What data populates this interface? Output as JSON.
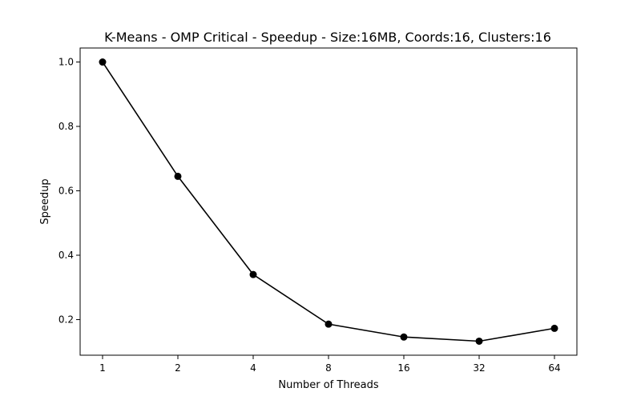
{
  "chart_data": {
    "type": "line",
    "title": "K-Means - OMP Critical - Speedup - Size:16MB, Coords:16, Clusters:16",
    "xlabel": "Number of Threads",
    "ylabel": "Speedup",
    "categories": [
      "1",
      "2",
      "4",
      "8",
      "16",
      "32",
      "64"
    ],
    "series": [
      {
        "color": "#000000",
        "marker": "circle",
        "values": [
          1.0,
          0.645,
          0.34,
          0.186,
          0.146,
          0.133,
          0.173
        ]
      }
    ],
    "yticks": [
      0.2,
      0.4,
      0.6,
      0.8,
      1.0
    ],
    "ytick_labels": [
      "0.2",
      "0.4",
      "0.6",
      "0.8",
      "1.0"
    ],
    "ylim": [
      0.0895,
      1.0435
    ],
    "grid": false,
    "legend": "none"
  }
}
